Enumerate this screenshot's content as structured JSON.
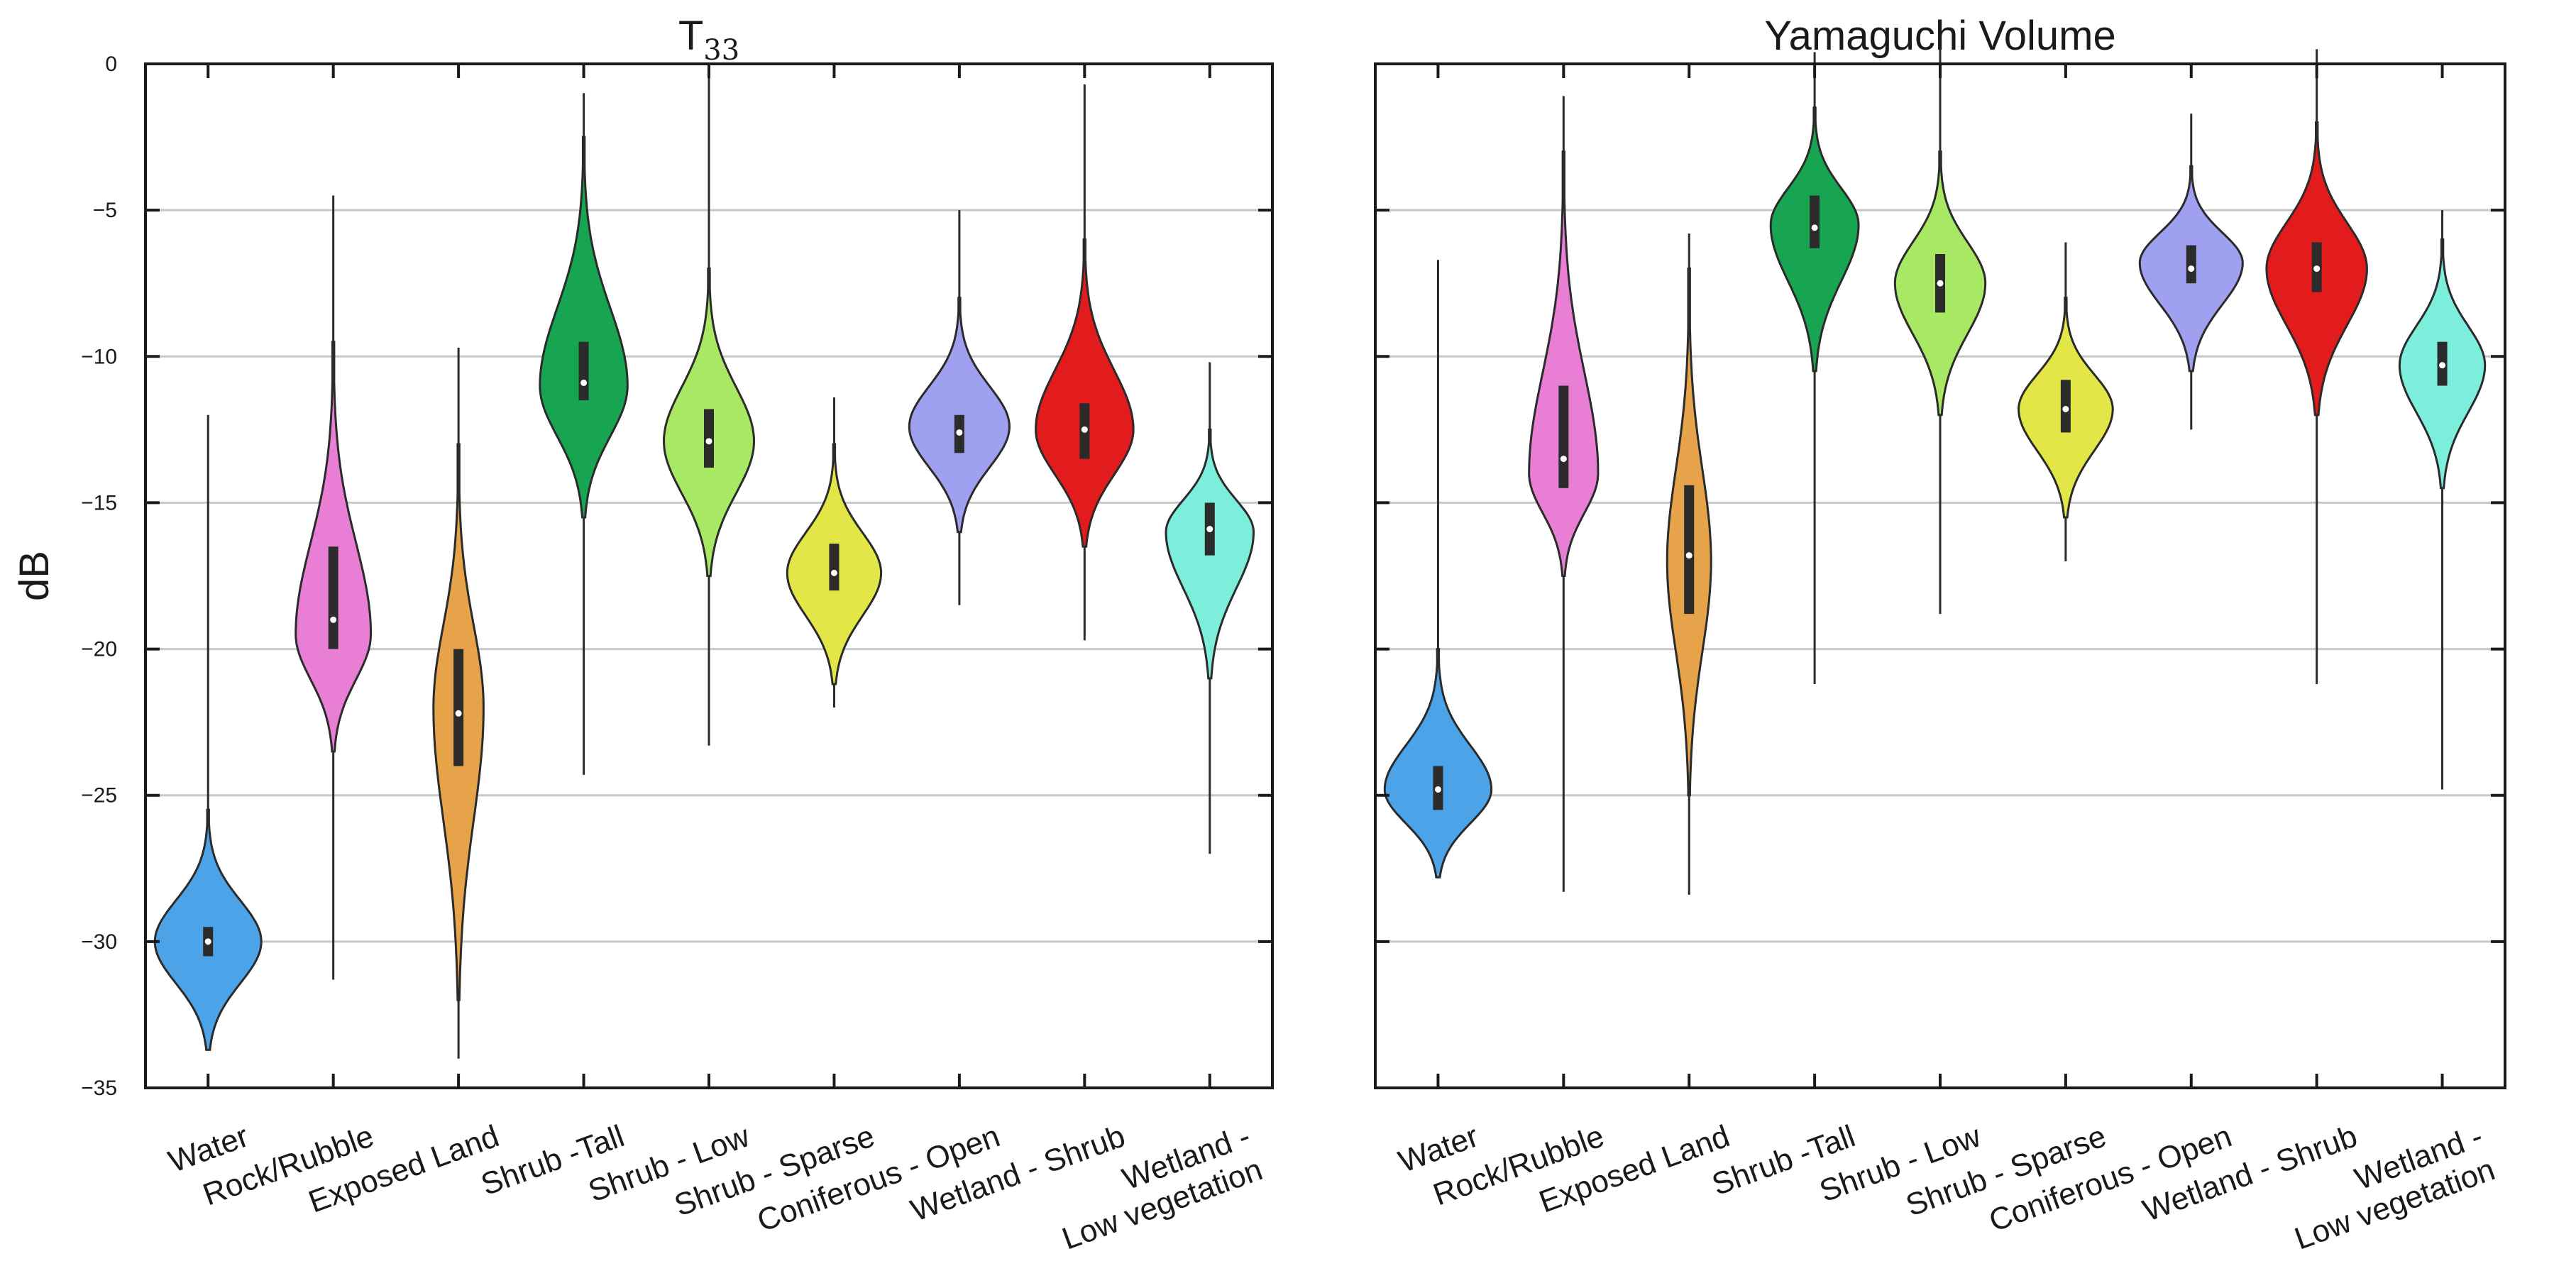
{
  "chart_data": {
    "type": "violin",
    "ylabel": "dB",
    "ylim": [
      -35,
      0
    ],
    "yticks": [
      0,
      -5,
      -10,
      -15,
      -20,
      -25,
      -30,
      -35
    ],
    "grid": "horizontal",
    "categories": [
      {
        "lines": [
          "Water"
        ],
        "color": "#4da3e8"
      },
      {
        "lines": [
          "Rock/Rubble"
        ],
        "color": "#e97fd5"
      },
      {
        "lines": [
          "Exposed Land"
        ],
        "color": "#e6a34a"
      },
      {
        "lines": [
          "Shrub -Tall"
        ],
        "color": "#18a552"
      },
      {
        "lines": [
          "Shrub - Low"
        ],
        "color": "#a8e864"
      },
      {
        "lines": [
          "Shrub - Sparse"
        ],
        "color": "#e2e646"
      },
      {
        "lines": [
          "Coniferous - Open"
        ],
        "color": "#a0a0f0"
      },
      {
        "lines": [
          "Wetland - Shrub"
        ],
        "color": "#e21c1c"
      },
      {
        "lines": [
          "Wetland -",
          "Low vegetation"
        ],
        "color": "#7ceedb"
      }
    ],
    "panels": [
      {
        "title_main": "T",
        "title_sub": "33",
        "violins": [
          {
            "whisker": [
              -33.6,
              -12
            ],
            "body": [
              -33.7,
              -25.5
            ],
            "q1": -30.5,
            "median": -30,
            "q3": -29.5,
            "mode": -30,
            "halfwidth": 0.85
          },
          {
            "whisker": [
              -31.3,
              -4.5
            ],
            "body": [
              -23.5,
              -9.5
            ],
            "q1": -20,
            "median": -19,
            "q3": -16.5,
            "mode": -19.5,
            "halfwidth": 0.6
          },
          {
            "whisker": [
              -34,
              -9.7
            ],
            "body": [
              -32,
              -13
            ],
            "q1": -24,
            "median": -22.2,
            "q3": -20,
            "mode": -22,
            "halfwidth": 0.4
          },
          {
            "whisker": [
              -24.3,
              -1
            ],
            "body": [
              -15.5,
              -2.5
            ],
            "q1": -11.5,
            "median": -10.9,
            "q3": -9.5,
            "mode": -11,
            "halfwidth": 0.7
          },
          {
            "whisker": [
              -23.3,
              -0.3
            ],
            "body": [
              -17.5,
              -7
            ],
            "q1": -13.8,
            "median": -12.9,
            "q3": -11.8,
            "mode": -12.9,
            "halfwidth": 0.72
          },
          {
            "whisker": [
              -22,
              -11.4
            ],
            "body": [
              -21.2,
              -13
            ],
            "q1": -18,
            "median": -17.4,
            "q3": -16.4,
            "mode": -17.4,
            "halfwidth": 0.75
          },
          {
            "whisker": [
              -18.5,
              -5
            ],
            "body": [
              -16,
              -8
            ],
            "q1": -13.3,
            "median": -12.6,
            "q3": -12,
            "mode": -12.4,
            "halfwidth": 0.8
          },
          {
            "whisker": [
              -19.7,
              -0.7
            ],
            "body": [
              -16.5,
              -6
            ],
            "q1": -13.5,
            "median": -12.5,
            "q3": -11.6,
            "mode": -12.5,
            "halfwidth": 0.78
          },
          {
            "whisker": [
              -27,
              -10.2
            ],
            "body": [
              -21,
              -12.5
            ],
            "q1": -16.8,
            "median": -15.9,
            "q3": -15,
            "mode": -16,
            "halfwidth": 0.7
          }
        ]
      },
      {
        "title_main": "Yamaguchi Volume",
        "title_sub": "",
        "violins": [
          {
            "whisker": [
              -27.5,
              -6.7
            ],
            "body": [
              -27.8,
              -20
            ],
            "q1": -25.5,
            "median": -24.8,
            "q3": -24,
            "mode": -24.8,
            "halfwidth": 0.85
          },
          {
            "whisker": [
              -28.3,
              -1.1
            ],
            "body": [
              -17.5,
              -3
            ],
            "q1": -14.5,
            "median": -13.5,
            "q3": -11,
            "mode": -14,
            "halfwidth": 0.55
          },
          {
            "whisker": [
              -28.4,
              -5.8
            ],
            "body": [
              -25,
              -7
            ],
            "q1": -18.8,
            "median": -16.8,
            "q3": -14.4,
            "mode": -17,
            "halfwidth": 0.35
          },
          {
            "whisker": [
              -21.2,
              0.4
            ],
            "body": [
              -10.5,
              -1.5
            ],
            "q1": -6.3,
            "median": -5.6,
            "q3": -4.5,
            "mode": -5.5,
            "halfwidth": 0.7
          },
          {
            "whisker": [
              -18.8,
              0.5
            ],
            "body": [
              -12,
              -3
            ],
            "q1": -8.5,
            "median": -7.5,
            "q3": -6.5,
            "mode": -7.5,
            "halfwidth": 0.72
          },
          {
            "whisker": [
              -17,
              -6.1
            ],
            "body": [
              -15.5,
              -8
            ],
            "q1": -12.6,
            "median": -11.8,
            "q3": -10.8,
            "mode": -11.8,
            "halfwidth": 0.75
          },
          {
            "whisker": [
              -12.5,
              -1.7
            ],
            "body": [
              -10.5,
              -3.5
            ],
            "q1": -7.5,
            "median": -7,
            "q3": -6.2,
            "mode": -6.8,
            "halfwidth": 0.82
          },
          {
            "whisker": [
              -21.2,
              0.5
            ],
            "body": [
              -12,
              -2
            ],
            "q1": -7.8,
            "median": -7,
            "q3": -6.1,
            "mode": -7,
            "halfwidth": 0.8
          },
          {
            "whisker": [
              -24.8,
              -5
            ],
            "body": [
              -14.5,
              -6
            ],
            "q1": -11,
            "median": -10.3,
            "q3": -9.5,
            "mode": -10.3,
            "halfwidth": 0.68
          }
        ]
      }
    ]
  }
}
